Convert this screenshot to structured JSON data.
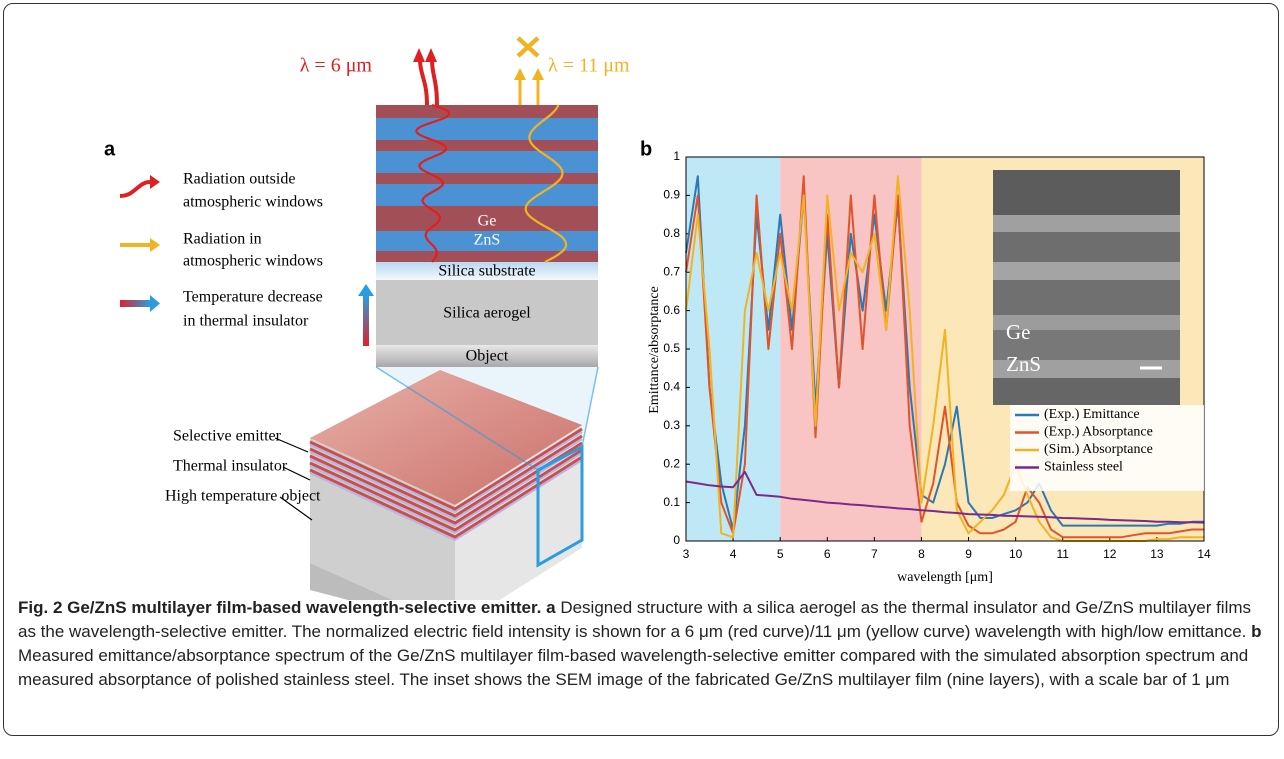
{
  "panel_a": {
    "label": "a",
    "legend": [
      {
        "lines": [
          "Radiation outside",
          "atmospheric windows"
        ]
      },
      {
        "lines": [
          "Radiation in",
          "atmospheric windows"
        ]
      },
      {
        "lines": [
          "Temperature decrease",
          "in thermal insulator"
        ]
      }
    ],
    "wave_labels": [
      "λ = 6 μm",
      "λ = 11 μm"
    ],
    "layer_labels": [
      "Ge",
      "ZnS",
      "Silica substrate",
      "Silica aerogel",
      "Object"
    ],
    "block_labels": [
      "Selective emitter",
      "Thermal insulator",
      "High temperature object"
    ]
  },
  "chart_data": {
    "type": "line",
    "label": "b",
    "xlabel": "wavelength [μm]",
    "ylabel": "Emittance/absorptance",
    "xlim": [
      3,
      14
    ],
    "ylim": [
      0,
      1
    ],
    "xticks": [
      3,
      4,
      5,
      6,
      7,
      8,
      9,
      10,
      11,
      12,
      13,
      14
    ],
    "yticks": [
      0,
      0.1,
      0.2,
      0.3,
      0.4,
      0.5,
      0.6,
      0.7,
      0.8,
      0.9,
      1
    ],
    "shaded_regions": [
      {
        "x": [
          3,
          5
        ],
        "color": "#bfe8f7"
      },
      {
        "x": [
          5,
          8
        ],
        "color": "#f8c4c4"
      },
      {
        "x": [
          8,
          14
        ],
        "color": "#fbe7b8"
      }
    ],
    "inset_labels": [
      "Ge",
      "ZnS"
    ],
    "legend": "lower right",
    "x": [
      3,
      3.25,
      3.5,
      3.75,
      4,
      4.25,
      4.5,
      4.75,
      5,
      5.25,
      5.5,
      5.75,
      6,
      6.25,
      6.5,
      6.75,
      7,
      7.25,
      7.5,
      7.75,
      8,
      8.25,
      8.5,
      8.75,
      9,
      9.25,
      9.5,
      9.75,
      10,
      10.25,
      10.5,
      10.75,
      11,
      11.25,
      11.5,
      11.75,
      12,
      12.25,
      12.5,
      12.75,
      13,
      13.25,
      13.5,
      13.75,
      14
    ],
    "series": [
      {
        "name": "(Exp.) Emittance",
        "color": "#2a78b5",
        "values": [
          0.75,
          0.95,
          0.4,
          0.15,
          0.03,
          0.3,
          0.85,
          0.55,
          0.85,
          0.55,
          0.9,
          0.35,
          0.8,
          0.4,
          0.8,
          0.6,
          0.85,
          0.6,
          0.88,
          0.4,
          0.12,
          0.1,
          0.2,
          0.35,
          0.1,
          0.06,
          0.06,
          0.07,
          0.08,
          0.1,
          0.15,
          0.08,
          0.04,
          0.04,
          0.04,
          0.04,
          0.04,
          0.04,
          0.04,
          0.04,
          0.04,
          0.045,
          0.045,
          0.05,
          0.05
        ]
      },
      {
        "name": "(Exp.) Absorptance",
        "color": "#e0542a",
        "values": [
          0.7,
          0.9,
          0.4,
          0.1,
          0.02,
          0.2,
          0.9,
          0.5,
          0.8,
          0.5,
          0.95,
          0.27,
          0.85,
          0.4,
          0.9,
          0.5,
          0.9,
          0.55,
          0.9,
          0.3,
          0.05,
          0.15,
          0.35,
          0.1,
          0.04,
          0.02,
          0.02,
          0.03,
          0.05,
          0.14,
          0.1,
          0.03,
          0.01,
          0.01,
          0.01,
          0.01,
          0.01,
          0.01,
          0.015,
          0.02,
          0.02,
          0.02,
          0.025,
          0.03,
          0.03
        ]
      },
      {
        "name": "(Sim.) Absorptance",
        "color": "#f2b322",
        "values": [
          0.6,
          0.85,
          0.5,
          0.02,
          0.01,
          0.6,
          0.75,
          0.6,
          0.75,
          0.6,
          0.9,
          0.3,
          0.9,
          0.6,
          0.75,
          0.7,
          0.8,
          0.55,
          0.95,
          0.6,
          0.1,
          0.3,
          0.55,
          0.08,
          0.02,
          0.05,
          0.08,
          0.12,
          0.2,
          0.12,
          0.05,
          0.01,
          0,
          0,
          0,
          0,
          0,
          0,
          0,
          0,
          0.005,
          0.005,
          0.01,
          0.01,
          0.01
        ]
      },
      {
        "name": "Stainless steel",
        "color": "#7a2a8a",
        "values": [
          0.155,
          0.15,
          0.145,
          0.142,
          0.14,
          0.18,
          0.12,
          0.118,
          0.115,
          0.11,
          0.107,
          0.104,
          0.1,
          0.098,
          0.095,
          0.093,
          0.09,
          0.088,
          0.085,
          0.083,
          0.08,
          0.078,
          0.075,
          0.073,
          0.07,
          0.069,
          0.068,
          0.066,
          0.065,
          0.064,
          0.063,
          0.062,
          0.06,
          0.059,
          0.058,
          0.057,
          0.055,
          0.054,
          0.053,
          0.052,
          0.05,
          0.05,
          0.049,
          0.049,
          0.048
        ]
      }
    ]
  },
  "caption": {
    "title": "Fig. 2 Ge/ZnS multilayer film-based wavelength-selective emitter.",
    "parts": [
      {
        "label": "a",
        "text": "Designed structure with a silica aerogel as the thermal insulator and Ge/ZnS multilayer films as the wavelength-selective emitter. The normalized electric field intensity is shown for a 6 μm (red curve)/11 μm (yellow curve) wavelength with high/low emittance."
      },
      {
        "label": "b",
        "text": "Measured emittance/absorptance spectrum of the Ge/ZnS multilayer film-based wavelength-selective emitter compared with the simulated absorption spectrum and measured absorptance of polished stainless steel. The inset shows the SEM image of the fabricated Ge/ZnS multilayer film (nine layers), with a scale bar of 1 μm"
      }
    ]
  }
}
